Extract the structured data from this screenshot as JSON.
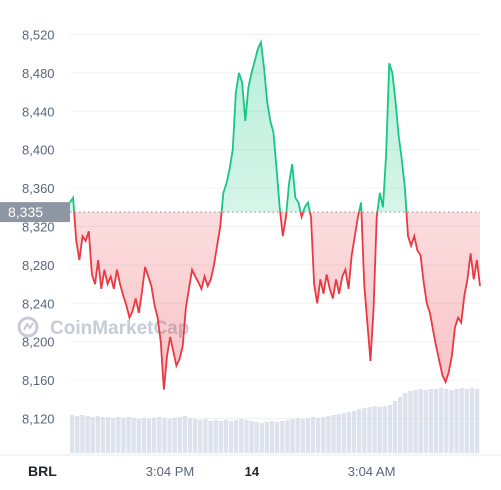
{
  "chart_data": {
    "type": "area",
    "currency_label": "BRL",
    "watermark": "CoinMarketCap",
    "baseline": 8335,
    "baseline_label": "8,335",
    "ylim": [
      8100,
      8530
    ],
    "y_ticks": [
      8120,
      8160,
      8200,
      8240,
      8280,
      8320,
      8360,
      8400,
      8440,
      8480,
      8520
    ],
    "y_tick_labels": [
      "8,120",
      "8,160",
      "8,200",
      "8,240",
      "8,280",
      "8,320",
      "8,360",
      "8,400",
      "8,440",
      "8,480",
      "8,520"
    ],
    "x_tick_labels": [
      {
        "label": "3:04 PM",
        "t": 0.25,
        "bold": false
      },
      {
        "label": "14",
        "t": 0.445,
        "bold": true
      },
      {
        "label": "3:04 AM",
        "t": 0.73,
        "bold": false
      }
    ],
    "colors": {
      "up": "#16c784",
      "down": "#ea3943",
      "grid": "#eff2f5",
      "volume": "#cfd6e4",
      "baseline_bg": "#8f96a3"
    },
    "series": [
      {
        "values": [
          8345,
          8350,
          8305,
          8285,
          8310,
          8305,
          8315,
          8270,
          8260,
          8285,
          8255,
          8275,
          8260,
          8268,
          8255,
          8275,
          8260,
          8248,
          8238,
          8225,
          8232,
          8245,
          8230,
          8252,
          8278,
          8268,
          8258,
          8238,
          8225,
          8200,
          8150,
          8185,
          8205,
          8190,
          8175,
          8182,
          8195,
          8235,
          8255,
          8275,
          8268,
          8262,
          8255,
          8268,
          8258,
          8265,
          8280,
          8300,
          8320,
          8355,
          8365,
          8380,
          8400,
          8460,
          8480,
          8470,
          8430,
          8465,
          8480,
          8492,
          8505,
          8512,
          8485,
          8450,
          8430,
          8418,
          8380,
          8340,
          8310,
          8330,
          8365,
          8385,
          8350,
          8345,
          8330,
          8340,
          8345,
          8330,
          8260,
          8240,
          8265,
          8250,
          8270,
          8255,
          8245,
          8265,
          8250,
          8268,
          8275,
          8255,
          8290,
          8310,
          8330,
          8345,
          8260,
          8220,
          8180,
          8235,
          8330,
          8355,
          8340,
          8395,
          8490,
          8480,
          8450,
          8415,
          8390,
          8360,
          8310,
          8300,
          8310,
          8295,
          8290,
          8262,
          8240,
          8230,
          8212,
          8195,
          8180,
          8165,
          8158,
          8168,
          8185,
          8215,
          8225,
          8220,
          8248,
          8265,
          8292,
          8265,
          8285,
          8258
        ]
      }
    ],
    "volume": [
      0.38,
      0.37,
      0.38,
      0.37,
      0.36,
      0.37,
      0.36,
      0.36,
      0.35,
      0.36,
      0.35,
      0.36,
      0.35,
      0.34,
      0.35,
      0.34,
      0.35,
      0.36,
      0.35,
      0.34,
      0.35,
      0.36,
      0.37,
      0.35,
      0.34,
      0.33,
      0.34,
      0.32,
      0.33,
      0.32,
      0.33,
      0.32,
      0.33,
      0.34,
      0.33,
      0.32,
      0.31,
      0.3,
      0.31,
      0.32,
      0.31,
      0.32,
      0.33,
      0.34,
      0.35,
      0.34,
      0.35,
      0.36,
      0.35,
      0.36,
      0.37,
      0.38,
      0.39,
      0.4,
      0.41,
      0.42,
      0.44,
      0.45,
      0.46,
      0.47,
      0.46,
      0.47,
      0.48,
      0.52,
      0.56,
      0.6,
      0.62,
      0.63,
      0.64,
      0.63,
      0.64,
      0.64,
      0.65,
      0.64,
      0.63,
      0.64,
      0.65,
      0.64,
      0.65,
      0.64
    ]
  }
}
